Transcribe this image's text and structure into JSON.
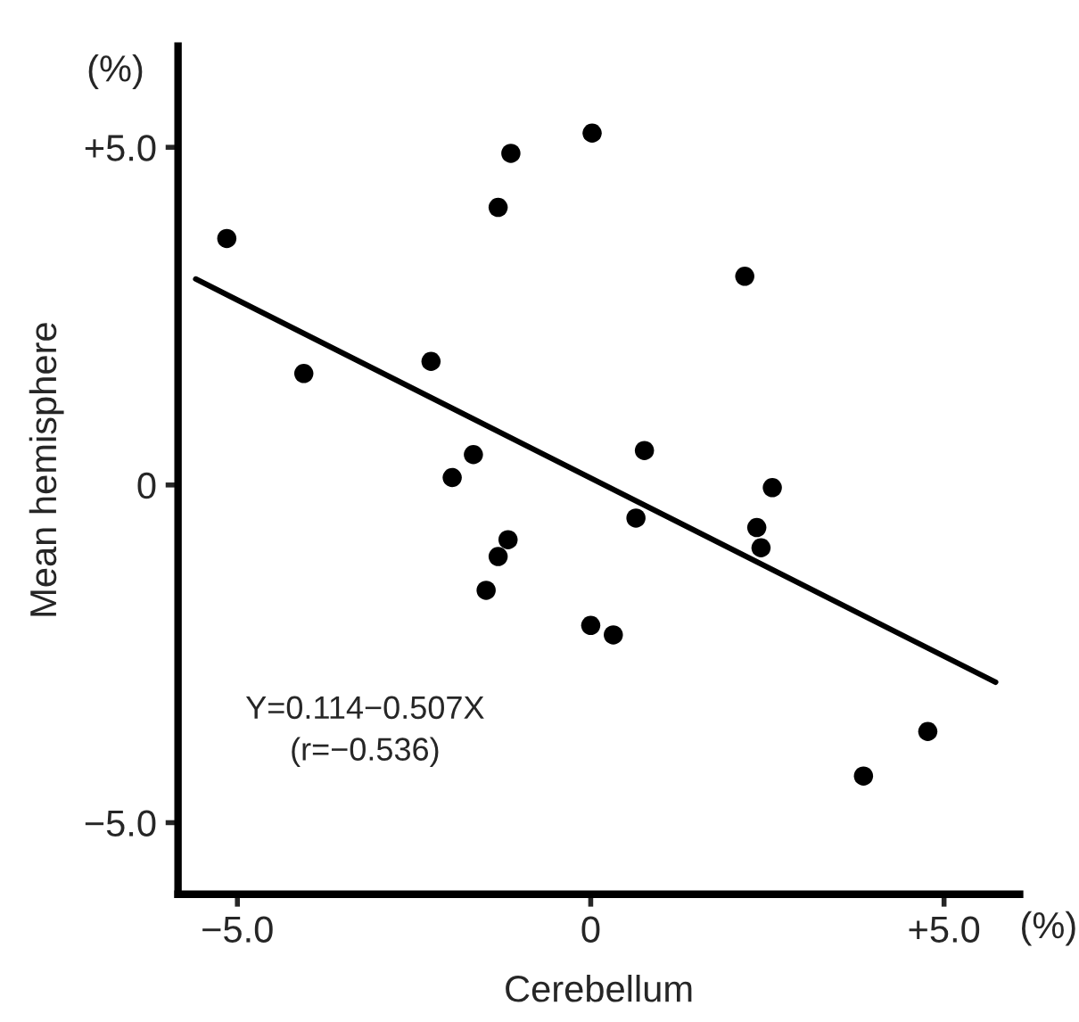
{
  "chart_data": {
    "type": "scatter",
    "xlabel": "Cerebellum",
    "ylabel": "Mean hemisphere",
    "xlim": [
      -5.84,
      6.07
    ],
    "ylim": [
      -6.06,
      6.5
    ],
    "xticks": [
      {
        "value": -5,
        "label": "−5.0"
      },
      0,
      {
        "value": 5,
        "label": "+5.0"
      }
    ],
    "yticks": [
      {
        "value": -5,
        "label": "−5.0"
      },
      0,
      {
        "value": 5,
        "label": "+5.0"
      }
    ],
    "grid": false,
    "legend": false,
    "series": [
      {
        "color": "#000000",
        "marker": "circle",
        "x": [
          -5.15,
          -4.06,
          -2.26,
          -1.31,
          -1.13,
          0.02,
          2.18,
          -1.66,
          -1.96,
          0.76,
          2.57,
          0.64,
          2.35,
          2.41,
          -1.17,
          -1.31,
          -1.48,
          0.0,
          0.32,
          4.77,
          3.86
        ],
        "values": [
          3.65,
          1.65,
          1.83,
          4.11,
          4.91,
          5.21,
          3.09,
          0.45,
          0.11,
          0.51,
          -0.04,
          -0.49,
          -0.63,
          -0.93,
          -0.81,
          -1.06,
          -1.56,
          -2.08,
          -2.22,
          -3.65,
          -4.31
        ]
      },
      {
        "type": "line",
        "color": "#000000",
        "line_style": "solid",
        "x": [
          -5.59,
          5.73
        ],
        "values": [
          3.05,
          -2.92
        ]
      }
    ],
    "annotations": [
      "(%)",
      "(%)",
      "Y=0.114−0.507X\n(r=−0.536)"
    ]
  }
}
